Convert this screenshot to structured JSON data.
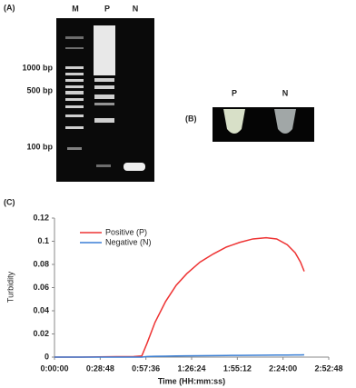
{
  "figure": {
    "panel_a": {
      "label": "(A)",
      "lanes": [
        "M",
        "P",
        "N"
      ],
      "markers": [
        "1000 bp",
        "500 bp",
        "100 bp"
      ]
    },
    "panel_b": {
      "label": "(B)",
      "tubes": [
        "P",
        "N"
      ]
    },
    "panel_c": {
      "label": "(C)"
    }
  },
  "chart_data": {
    "type": "line",
    "x_label": "Time (HH:mm:ss)",
    "y_label": "Turbidity",
    "x": [
      0,
      1000,
      2000,
      3000,
      3300,
      3500,
      3800,
      4200,
      4600,
      5000,
      5500,
      6000,
      6500,
      7000,
      7500,
      8000,
      8400,
      8800,
      9100,
      9300,
      9440
    ],
    "series": [
      {
        "name": "Positive (P)",
        "color": "#ee3333",
        "values": [
          0,
          0,
          0.0003,
          0.0005,
          0.001,
          0.012,
          0.03,
          0.048,
          0.062,
          0.072,
          0.082,
          0.089,
          0.095,
          0.099,
          0.102,
          0.103,
          0.102,
          0.097,
          0.09,
          0.082,
          0.074
        ]
      },
      {
        "name": "Negative (N)",
        "color": "#3a7fd5",
        "values": [
          0,
          0,
          0,
          0,
          0,
          0.0005,
          0.0007,
          0.0008,
          0.001,
          0.0011,
          0.0012,
          0.0013,
          0.0014,
          0.0015,
          0.0016,
          0.0017,
          0.0018,
          0.0018,
          0.0019,
          0.0019,
          0.002
        ]
      }
    ],
    "xlim": [
      0,
      10368
    ],
    "xticks": [
      {
        "value": 0,
        "label": "0:00:00"
      },
      {
        "value": 1728,
        "label": "0:28:48"
      },
      {
        "value": 3456,
        "label": "0:57:36"
      },
      {
        "value": 5184,
        "label": "1:26:24"
      },
      {
        "value": 6912,
        "label": "1:55:12"
      },
      {
        "value": 8640,
        "label": "2:24:00"
      },
      {
        "value": 10368,
        "label": "2:52:48"
      }
    ],
    "ylim": [
      0,
      0.12
    ],
    "yticks": [
      0,
      0.02,
      0.04,
      0.06,
      0.08,
      0.1,
      0.12
    ],
    "legend": "upper-left",
    "grid": false
  }
}
